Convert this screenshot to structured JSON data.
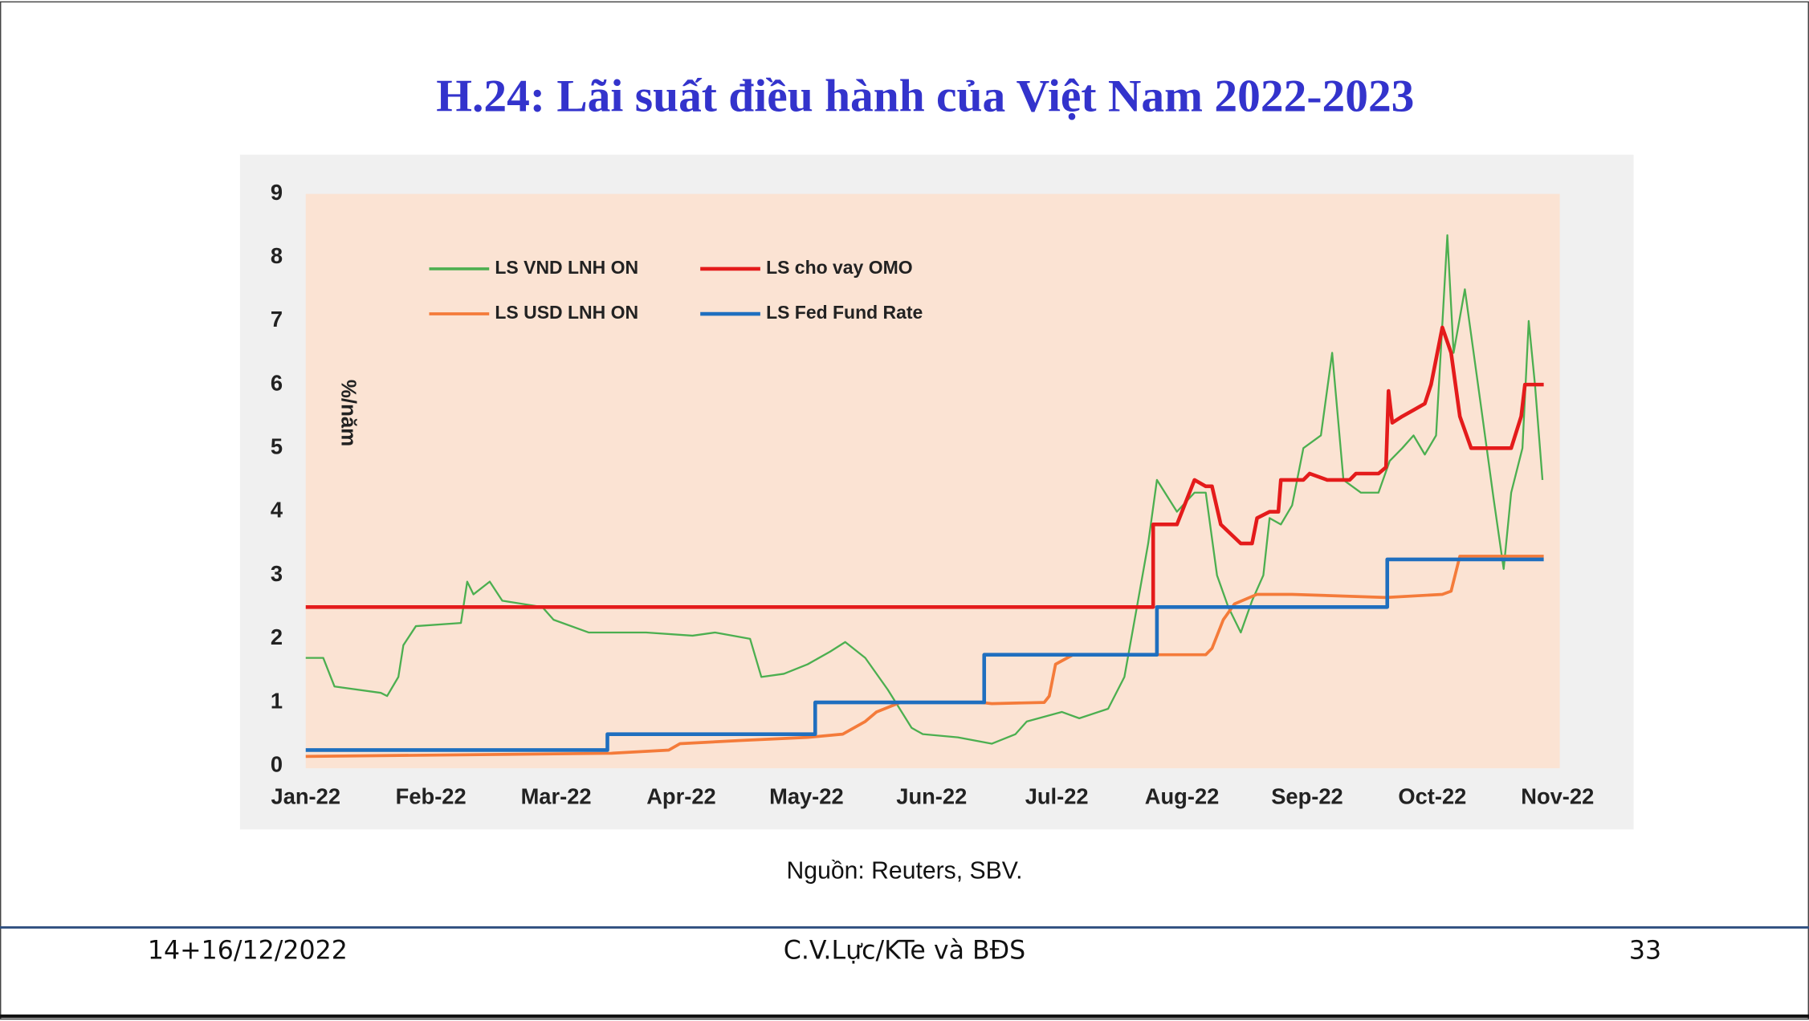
{
  "chart_data": {
    "type": "line",
    "title": "H.24: Lãi suất điều hành của Việt Nam 2022-2023",
    "ylabel": "%/năm",
    "source": "Nguồn: Reuters, SBV.",
    "xlim": [
      0,
      10
    ],
    "ylim": [
      0,
      9
    ],
    "xticks": [
      {
        "value": 0,
        "label": "Jan-22"
      },
      {
        "value": 1,
        "label": "Feb-22"
      },
      {
        "value": 2,
        "label": "Mar-22"
      },
      {
        "value": 3,
        "label": "Apr-22"
      },
      {
        "value": 4,
        "label": "May-22"
      },
      {
        "value": 5,
        "label": "Jun-22"
      },
      {
        "value": 6,
        "label": "Jul-22"
      },
      {
        "value": 7,
        "label": "Aug-22"
      },
      {
        "value": 8,
        "label": "Sep-22"
      },
      {
        "value": 9,
        "label": "Oct-22"
      },
      {
        "value": 10,
        "label": "Nov-22"
      }
    ],
    "yticks": [
      0,
      1,
      2,
      3,
      4,
      5,
      6,
      7,
      8,
      9
    ],
    "grid": false,
    "legend": "upper left",
    "series": [
      {
        "name": "LS VND LNH ON",
        "color": "#4caf50",
        "width": 1.6,
        "x": [
          0,
          0.14,
          0.23,
          0.6,
          0.65,
          0.74,
          0.78,
          0.88,
          1.24,
          1.29,
          1.34,
          1.47,
          1.57,
          1.89,
          1.98,
          2.26,
          2.72,
          3.09,
          3.27,
          3.55,
          3.64,
          3.82,
          4.01,
          4.19,
          4.31,
          4.47,
          4.65,
          4.84,
          4.93,
          5.21,
          5.48,
          5.67,
          5.76,
          6.04,
          6.18,
          6.41,
          6.54,
          6.64,
          6.73,
          6.8,
          6.96,
          7.1,
          7.19,
          7.28,
          7.37,
          7.47,
          7.56,
          7.65,
          7.7,
          7.79,
          7.88,
          7.97,
          8.11,
          8.2,
          8.29,
          8.43,
          8.57,
          8.66,
          8.76,
          8.85,
          8.94,
          9.03,
          9.12,
          9.17,
          9.26,
          9.4,
          9.49,
          9.57,
          9.63,
          9.72,
          9.77,
          9.82,
          9.88
        ],
        "values": [
          1.7,
          1.7,
          1.25,
          1.15,
          1.1,
          1.4,
          1.9,
          2.2,
          2.25,
          2.9,
          2.7,
          2.9,
          2.6,
          2.5,
          2.3,
          2.1,
          2.1,
          2.05,
          2.1,
          2.0,
          1.4,
          1.45,
          1.6,
          1.8,
          1.95,
          1.7,
          1.2,
          0.6,
          0.5,
          0.45,
          0.35,
          0.5,
          0.7,
          0.85,
          0.75,
          0.9,
          1.4,
          2.5,
          3.5,
          4.5,
          4.0,
          4.3,
          4.3,
          3.0,
          2.5,
          2.1,
          2.6,
          3.0,
          3.9,
          3.8,
          4.1,
          5.0,
          5.2,
          6.5,
          4.5,
          4.3,
          4.3,
          4.8,
          5.0,
          5.2,
          4.9,
          5.2,
          8.35,
          6.5,
          7.5,
          5.5,
          4.2,
          3.1,
          4.3,
          5.0,
          7.0,
          6.0,
          4.5
        ]
      },
      {
        "name": "LS cho vay OMO",
        "color": "#e41b1b",
        "width": 3.2,
        "x": [
          0,
          6.77,
          6.77,
          6.96,
          7.1,
          7.19,
          7.24,
          7.31,
          7.47,
          7.56,
          7.6,
          7.7,
          7.77,
          7.79,
          7.97,
          8.02,
          8.16,
          8.34,
          8.39,
          8.57,
          8.63,
          8.65,
          8.68,
          8.76,
          8.85,
          8.94,
          8.99,
          9.08,
          9.15,
          9.22,
          9.31,
          9.63,
          9.71,
          9.74,
          9.89
        ],
        "values": [
          2.5,
          2.5,
          3.8,
          3.8,
          4.5,
          4.4,
          4.4,
          3.8,
          3.5,
          3.5,
          3.9,
          4.0,
          4.0,
          4.5,
          4.5,
          4.6,
          4.5,
          4.5,
          4.6,
          4.6,
          4.7,
          5.9,
          5.4,
          5.5,
          5.6,
          5.7,
          6.0,
          6.9,
          6.5,
          5.5,
          5.0,
          5.0,
          5.5,
          6.0,
          6.0
        ]
      },
      {
        "name": "LS USD LNH ON",
        "color": "#f47b3a",
        "width": 2.6,
        "x": [
          0,
          2.44,
          2.9,
          2.99,
          3.46,
          4.01,
          4.29,
          4.47,
          4.56,
          4.75,
          5.39,
          5.48,
          5.9,
          5.94,
          5.99,
          6.13,
          6.77,
          7.19,
          7.24,
          7.33,
          7.42,
          7.6,
          7.88,
          8.63,
          9.08,
          9.15,
          9.22,
          9.89
        ],
        "values": [
          0.15,
          0.2,
          0.25,
          0.35,
          0.4,
          0.45,
          0.5,
          0.7,
          0.85,
          1.0,
          1.0,
          0.98,
          1.0,
          1.1,
          1.6,
          1.75,
          1.75,
          1.75,
          1.85,
          2.3,
          2.55,
          2.7,
          2.7,
          2.65,
          2.7,
          2.75,
          3.3,
          3.3
        ]
      },
      {
        "name": "LS Fed Fund Rate",
        "color": "#1f6fbf",
        "width": 3.2,
        "x": [
          0,
          2.41,
          2.41,
          4.07,
          4.07,
          5.42,
          5.42,
          6.8,
          6.8,
          8.64,
          8.64,
          9.89
        ],
        "values": [
          0.25,
          0.25,
          0.5,
          0.5,
          1.0,
          1.0,
          1.75,
          1.75,
          2.5,
          2.5,
          3.25,
          3.25
        ]
      }
    ]
  },
  "footer": {
    "date": "14+16/12/2022",
    "author": "C.V.Lực/KTe và BĐS",
    "page": "33"
  }
}
